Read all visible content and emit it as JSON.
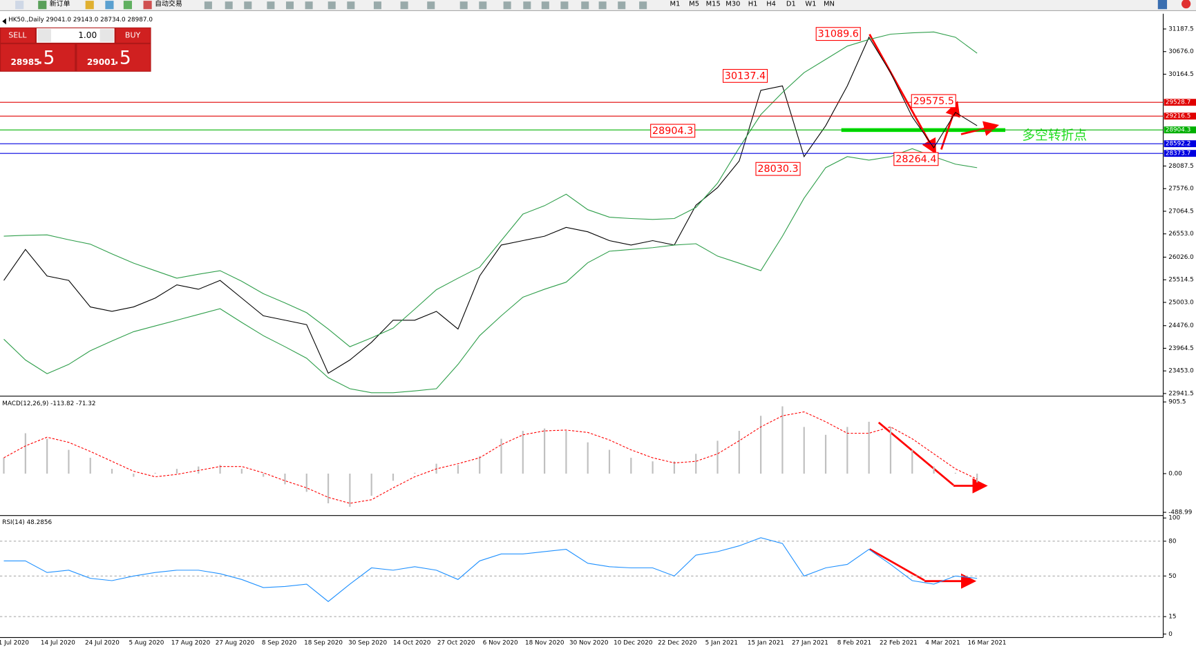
{
  "toolbar": {
    "buttons": [
      "新订单",
      "自动交易"
    ],
    "timeframes": [
      "M1",
      "M5",
      "M15",
      "M30",
      "H1",
      "H4",
      "D1",
      "W1",
      "MN"
    ]
  },
  "trade_panel": {
    "sell": "SELL",
    "lot": "1.00",
    "buy": "BUY",
    "sell_price": "28985",
    "sell_price_big": ".5",
    "buy_price": "29001",
    "buy_price_big": ".5"
  },
  "time_axis": [
    "1 Jul 2020",
    "14 Jul 2020",
    "24 Jul 2020",
    "5 Aug 2020",
    "17 Aug 2020",
    "27 Aug 2020",
    "8 Sep 2020",
    "18 Sep 2020",
    "30 Sep 2020",
    "14 Oct 2020",
    "27 Oct 2020",
    "6 Nov 2020",
    "18 Nov 2020",
    "30 Nov 2020",
    "10 Dec 2020",
    "22 Dec 2020",
    "5 Jan 2021",
    "15 Jan 2021",
    "27 Jan 2021",
    "8 Feb 2021",
    "22 Feb 2021",
    "4 Mar 2021",
    "16 Mar 2021"
  ],
  "chart_data": [
    {
      "type": "line",
      "title": "HK50.,Daily 29041.0 29143.0 28734.0 28987.0",
      "ylim": [
        22907,
        31498
      ],
      "yticks": [
        31187.5,
        {
          "value": 30676,
          "label": "30676.0"
        },
        30164.5,
        28087.5,
        {
          "value": 27576,
          "label": "27576.0"
        },
        27064.5,
        {
          "value": 26553,
          "label": "26553.0"
        },
        {
          "value": 26026,
          "label": "26026.0"
        },
        25514.5,
        {
          "value": 25003,
          "label": "25003.0"
        },
        {
          "value": 24476,
          "label": "24476.0"
        },
        23964.5,
        {
          "value": 23453,
          "label": "23453.0"
        },
        22941.5
      ],
      "grid": false,
      "series": [
        {
          "style": "line",
          "color": "#000000",
          "values": [
            25500,
            26200,
            25600,
            25500,
            24900,
            24800,
            24900,
            25100,
            25400,
            25300,
            25500,
            25100,
            24700,
            24600,
            24500,
            23400,
            23700,
            24100,
            24600,
            24600,
            24800,
            24400,
            25600,
            26300,
            26400,
            26500,
            26700,
            26600,
            26400,
            26300,
            26400,
            26300,
            27200,
            27600,
            28200,
            29800,
            29900,
            28300,
            29000,
            29900,
            31000,
            30200,
            29200,
            28500,
            29300,
            29000
          ]
        },
        {
          "style": "line",
          "color": "#2e9e4a",
          "values": [
            26500,
            26520,
            26530,
            26420,
            26320,
            26100,
            25890,
            25720,
            25550,
            25640,
            25720,
            25480,
            25200,
            24990,
            24770,
            24400,
            24000,
            24200,
            24420,
            24850,
            25290,
            25550,
            25800,
            26400,
            27000,
            27190,
            27450,
            27100,
            26930,
            26900,
            26880,
            26900,
            27150,
            27700,
            28500,
            29250,
            29750,
            30200,
            30500,
            30800,
            30950,
            31070,
            31100,
            31120,
            31000,
            30640
          ]
        },
        {
          "style": "line",
          "color": "#2e9e4a",
          "values": [
            24170,
            23700,
            23390,
            23600,
            23910,
            24130,
            24340,
            24470,
            24600,
            24730,
            24860,
            24550,
            24250,
            24000,
            23740,
            23300,
            23050,
            22960,
            22960,
            23000,
            23050,
            23600,
            24250,
            24700,
            25120,
            25300,
            25460,
            25900,
            26160,
            26200,
            26240,
            26300,
            26330,
            26050,
            25890,
            25720,
            26500,
            27360,
            28050,
            28300,
            28220,
            28300,
            28480,
            28300,
            28130,
            28050
          ]
        }
      ],
      "price_lines": [
        {
          "value": 29528.7,
          "color": "#e00000"
        },
        {
          "value": 29216.5,
          "color": "#e00000"
        },
        {
          "value": 28904.3,
          "color": "#00b000"
        },
        {
          "value": 28592.2,
          "color": "#0000e0"
        },
        {
          "value": 28373.7,
          "color": "#0000e0"
        }
      ],
      "annotations": [
        31089.6,
        30137.4,
        29575.5,
        28904.3,
        28030.3,
        28264.4
      ],
      "pivot_label": "多空转折点"
    },
    {
      "type": "macd",
      "title": "MACD(12,26,9) -113.82 -71.32",
      "ylim": [
        -520,
        954
      ],
      "yticks": [
        905.5,
        {
          "value": 0,
          "label": "0.00"
        },
        -488.99
      ],
      "grid": false,
      "series": [
        {
          "style": "bar",
          "color": "#c0c0c0",
          "values": [
            200,
            510,
            440,
            300,
            200,
            60,
            -40,
            10,
            60,
            90,
            110,
            60,
            -40,
            -135,
            -230,
            -375,
            -420,
            -280,
            -90,
            10,
            125,
            110,
            220,
            440,
            540,
            570,
            540,
            395,
            300,
            200,
            155,
            155,
            250,
            415,
            540,
            730,
            850,
            590,
            490,
            590,
            655,
            590,
            300,
            90,
            10,
            -110
          ]
        },
        {
          "style": "dashed",
          "color": "#ff0000",
          "values": [
            200,
            350,
            460,
            395,
            280,
            155,
            30,
            -40,
            -10,
            40,
            90,
            90,
            10,
            -90,
            -180,
            -300,
            -375,
            -330,
            -180,
            -40,
            60,
            125,
            200,
            365,
            490,
            540,
            550,
            520,
            425,
            300,
            200,
            135,
            155,
            250,
            415,
            590,
            730,
            780,
            655,
            510,
            510,
            590,
            440,
            250,
            60,
            -70
          ]
        }
      ]
    },
    {
      "type": "line",
      "title": "RSI(14) 48.2856",
      "ylim": [
        -2.4,
        100.8
      ],
      "yticks": [
        100,
        80,
        50,
        15,
        0
      ],
      "grid": true,
      "series": [
        {
          "style": "line",
          "color": "#1e90ff",
          "values": [
            63,
            63,
            53,
            55,
            48,
            46,
            50,
            53,
            55,
            55,
            52,
            47,
            40,
            41,
            43,
            28,
            43,
            57,
            55,
            58,
            55,
            47,
            63,
            69,
            69,
            71,
            73,
            61,
            58,
            57,
            57,
            50,
            68,
            71,
            76,
            83,
            78,
            50,
            57,
            60,
            73,
            60,
            46,
            43,
            50,
            48
          ]
        }
      ]
    }
  ]
}
